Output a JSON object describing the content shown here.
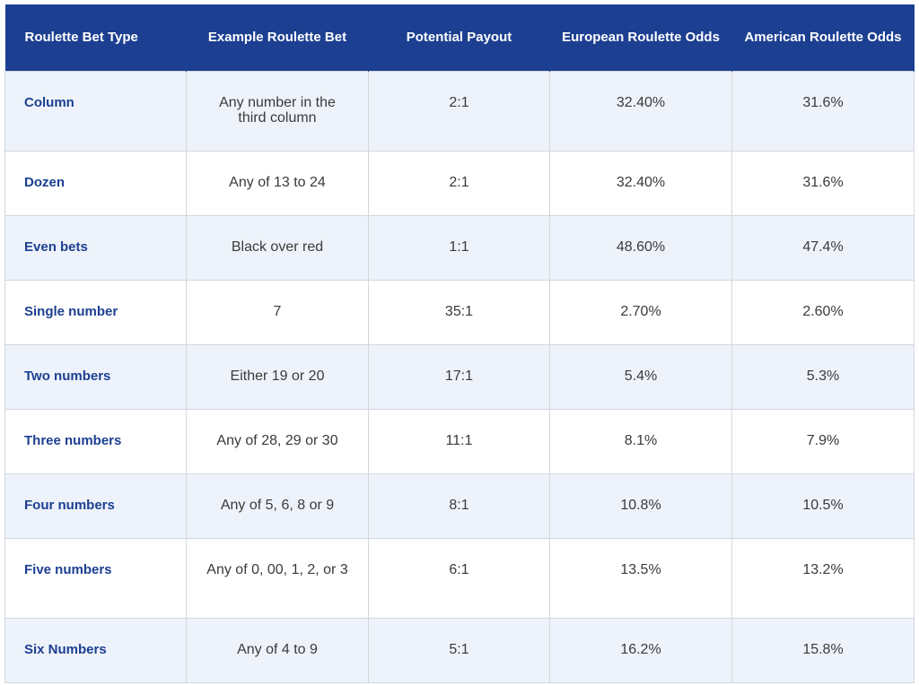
{
  "headers": [
    "Roulette Bet Type",
    "Example Roulette Bet",
    "Potential Payout",
    "European Roulette Odds",
    "American Roulette Odds"
  ],
  "rows": [
    {
      "type": "Column",
      "example": "Any number in the third column",
      "payout": "2:1",
      "european": "32.40%",
      "american": "31.6%"
    },
    {
      "type": "Dozen",
      "example": "Any of 13 to 24",
      "payout": "2:1",
      "european": "32.40%",
      "american": "31.6%"
    },
    {
      "type": "Even bets",
      "example": "Black over red",
      "payout": "1:1",
      "european": "48.60%",
      "american": "47.4%"
    },
    {
      "type": "Single number",
      "example": "7",
      "payout": "35:1",
      "european": "2.70%",
      "american": "2.60%"
    },
    {
      "type": "Two numbers",
      "example": "Either 19 or 20",
      "payout": "17:1",
      "european": "5.4%",
      "american": "5.3%"
    },
    {
      "type": "Three numbers",
      "example": "Any of 28, 29 or 30",
      "payout": "11:1",
      "european": "8.1%",
      "american": "7.9%"
    },
    {
      "type": "Four numbers",
      "example": "Any of 5, 6, 8 or 9",
      "payout": "8:1",
      "european": "10.8%",
      "american": "10.5%"
    },
    {
      "type": "Five numbers",
      "example": "Any of 0, 00, 1, 2, or 3",
      "payout": "6:1",
      "european": "13.5%",
      "american": "13.2%"
    },
    {
      "type": "Six Numbers",
      "example": "Any of 4 to 9",
      "payout": "5:1",
      "european": "16.2%",
      "american": "15.8%"
    }
  ],
  "colors": {
    "header_bg": "#1c3f91",
    "header_text": "#ffffff",
    "row_alt_bg": "#eef3fb",
    "type_text": "#1c3f91",
    "border": "#d3d7de"
  }
}
